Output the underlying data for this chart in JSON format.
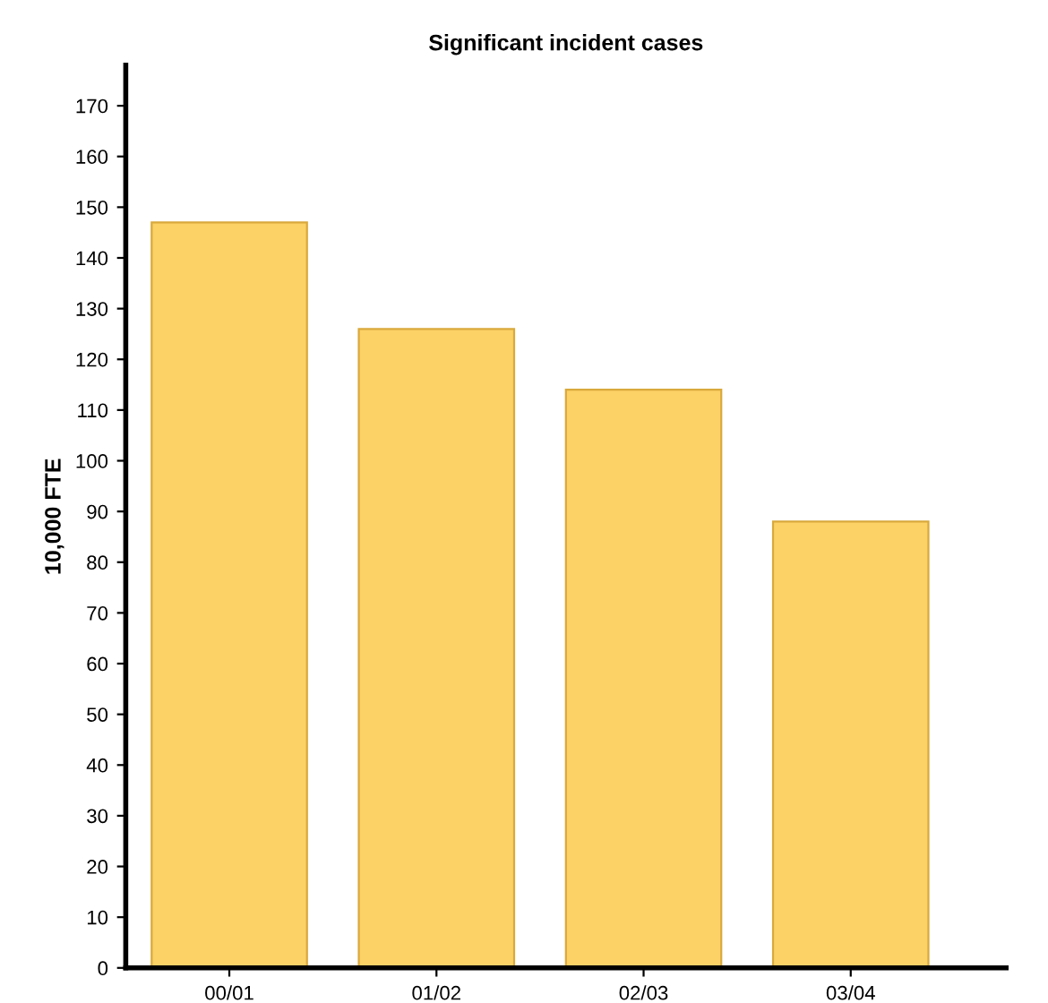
{
  "chart_data": {
    "type": "bar",
    "title": "Significant incident cases",
    "ylabel": "10,000 FTE",
    "categories": [
      "00/01",
      "01/02",
      "02/03",
      "03/04"
    ],
    "values": [
      147,
      126,
      114,
      88
    ],
    "color": "#fcd166",
    "ylim": [
      0,
      178
    ],
    "yticks": [
      0,
      10,
      20,
      30,
      40,
      50,
      60,
      70,
      80,
      90,
      100,
      110,
      120,
      130,
      140,
      150,
      160,
      170
    ],
    "grid": false
  }
}
